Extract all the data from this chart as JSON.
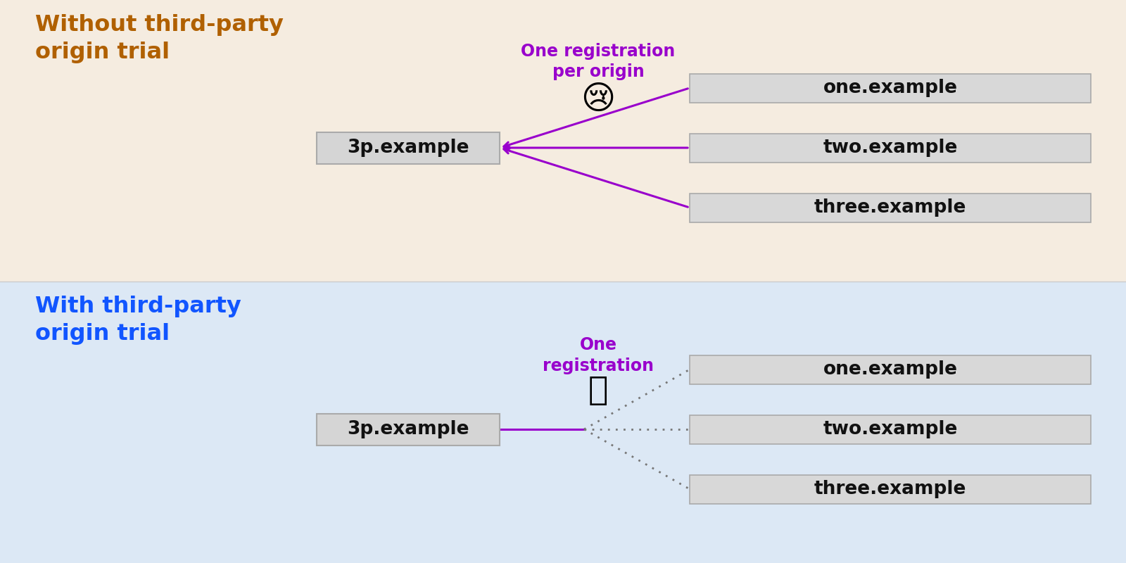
{
  "top_bg": "#f5ece0",
  "bottom_bg": "#dce8f5",
  "top_title": "Without third-party\norigin trial",
  "bottom_title": "With third-party\norigin trial",
  "top_title_color": "#b06000",
  "bottom_title_color": "#1155ff",
  "label_color": "#9900cc",
  "top_label": "One registration\nper origin",
  "bottom_label": "One\nregistration",
  "source_box": "3p.example",
  "targets": [
    "one.example",
    "two.example",
    "three.example"
  ],
  "box_bg": "#d8d8d8",
  "line_color_top": "#9900cc",
  "line_color_bottom": "#888888",
  "line_color_solid": "#9900cc"
}
